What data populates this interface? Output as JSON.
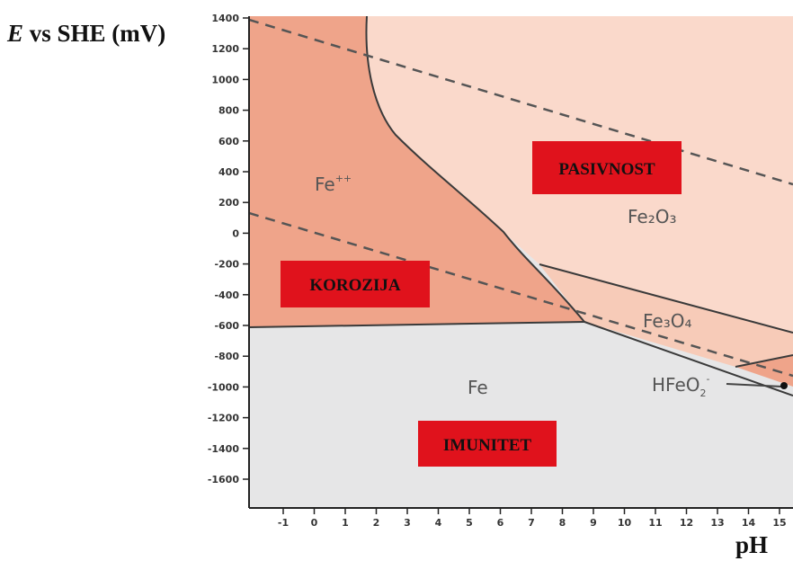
{
  "axes": {
    "y_title_italic": "E",
    "y_title_rest": " vs SHE (mV)",
    "x_title": "pH",
    "y_ticks": [
      "1400",
      "1200",
      "1000",
      "800",
      "600",
      "400",
      "200",
      "0",
      "-200",
      "-400",
      "-600",
      "-800",
      "-1000",
      "-1200",
      "-1400",
      "-1600"
    ],
    "x_ticks": [
      "-1",
      "0",
      "1",
      "2",
      "3",
      "4",
      "5",
      "6",
      "7",
      "8",
      "9",
      "10",
      "11",
      "12",
      "13",
      "14",
      "15"
    ]
  },
  "species": {
    "fe2": "Fe",
    "fe2_charge": "++",
    "fe2o3": "Fe₂O₃",
    "fe3o4": "Fe₃O₄",
    "fe": "Fe",
    "hfeo2": "HFeO",
    "hfeo2_sub": "2",
    "hfeo2_charge": "-"
  },
  "regions": {
    "corrosion": "KOROZIJA",
    "passivity": "PASIVNOST",
    "immunity": "IMUNITET"
  },
  "colors": {
    "corrosion_fill": "#efa48a",
    "passive_fill": "#fad9cb",
    "fe3o4_fill": "#f7cbb8",
    "immunity_fill": "#e6e6e7",
    "badge_fill": "#e0121c",
    "line": "#3a3a3a"
  }
}
